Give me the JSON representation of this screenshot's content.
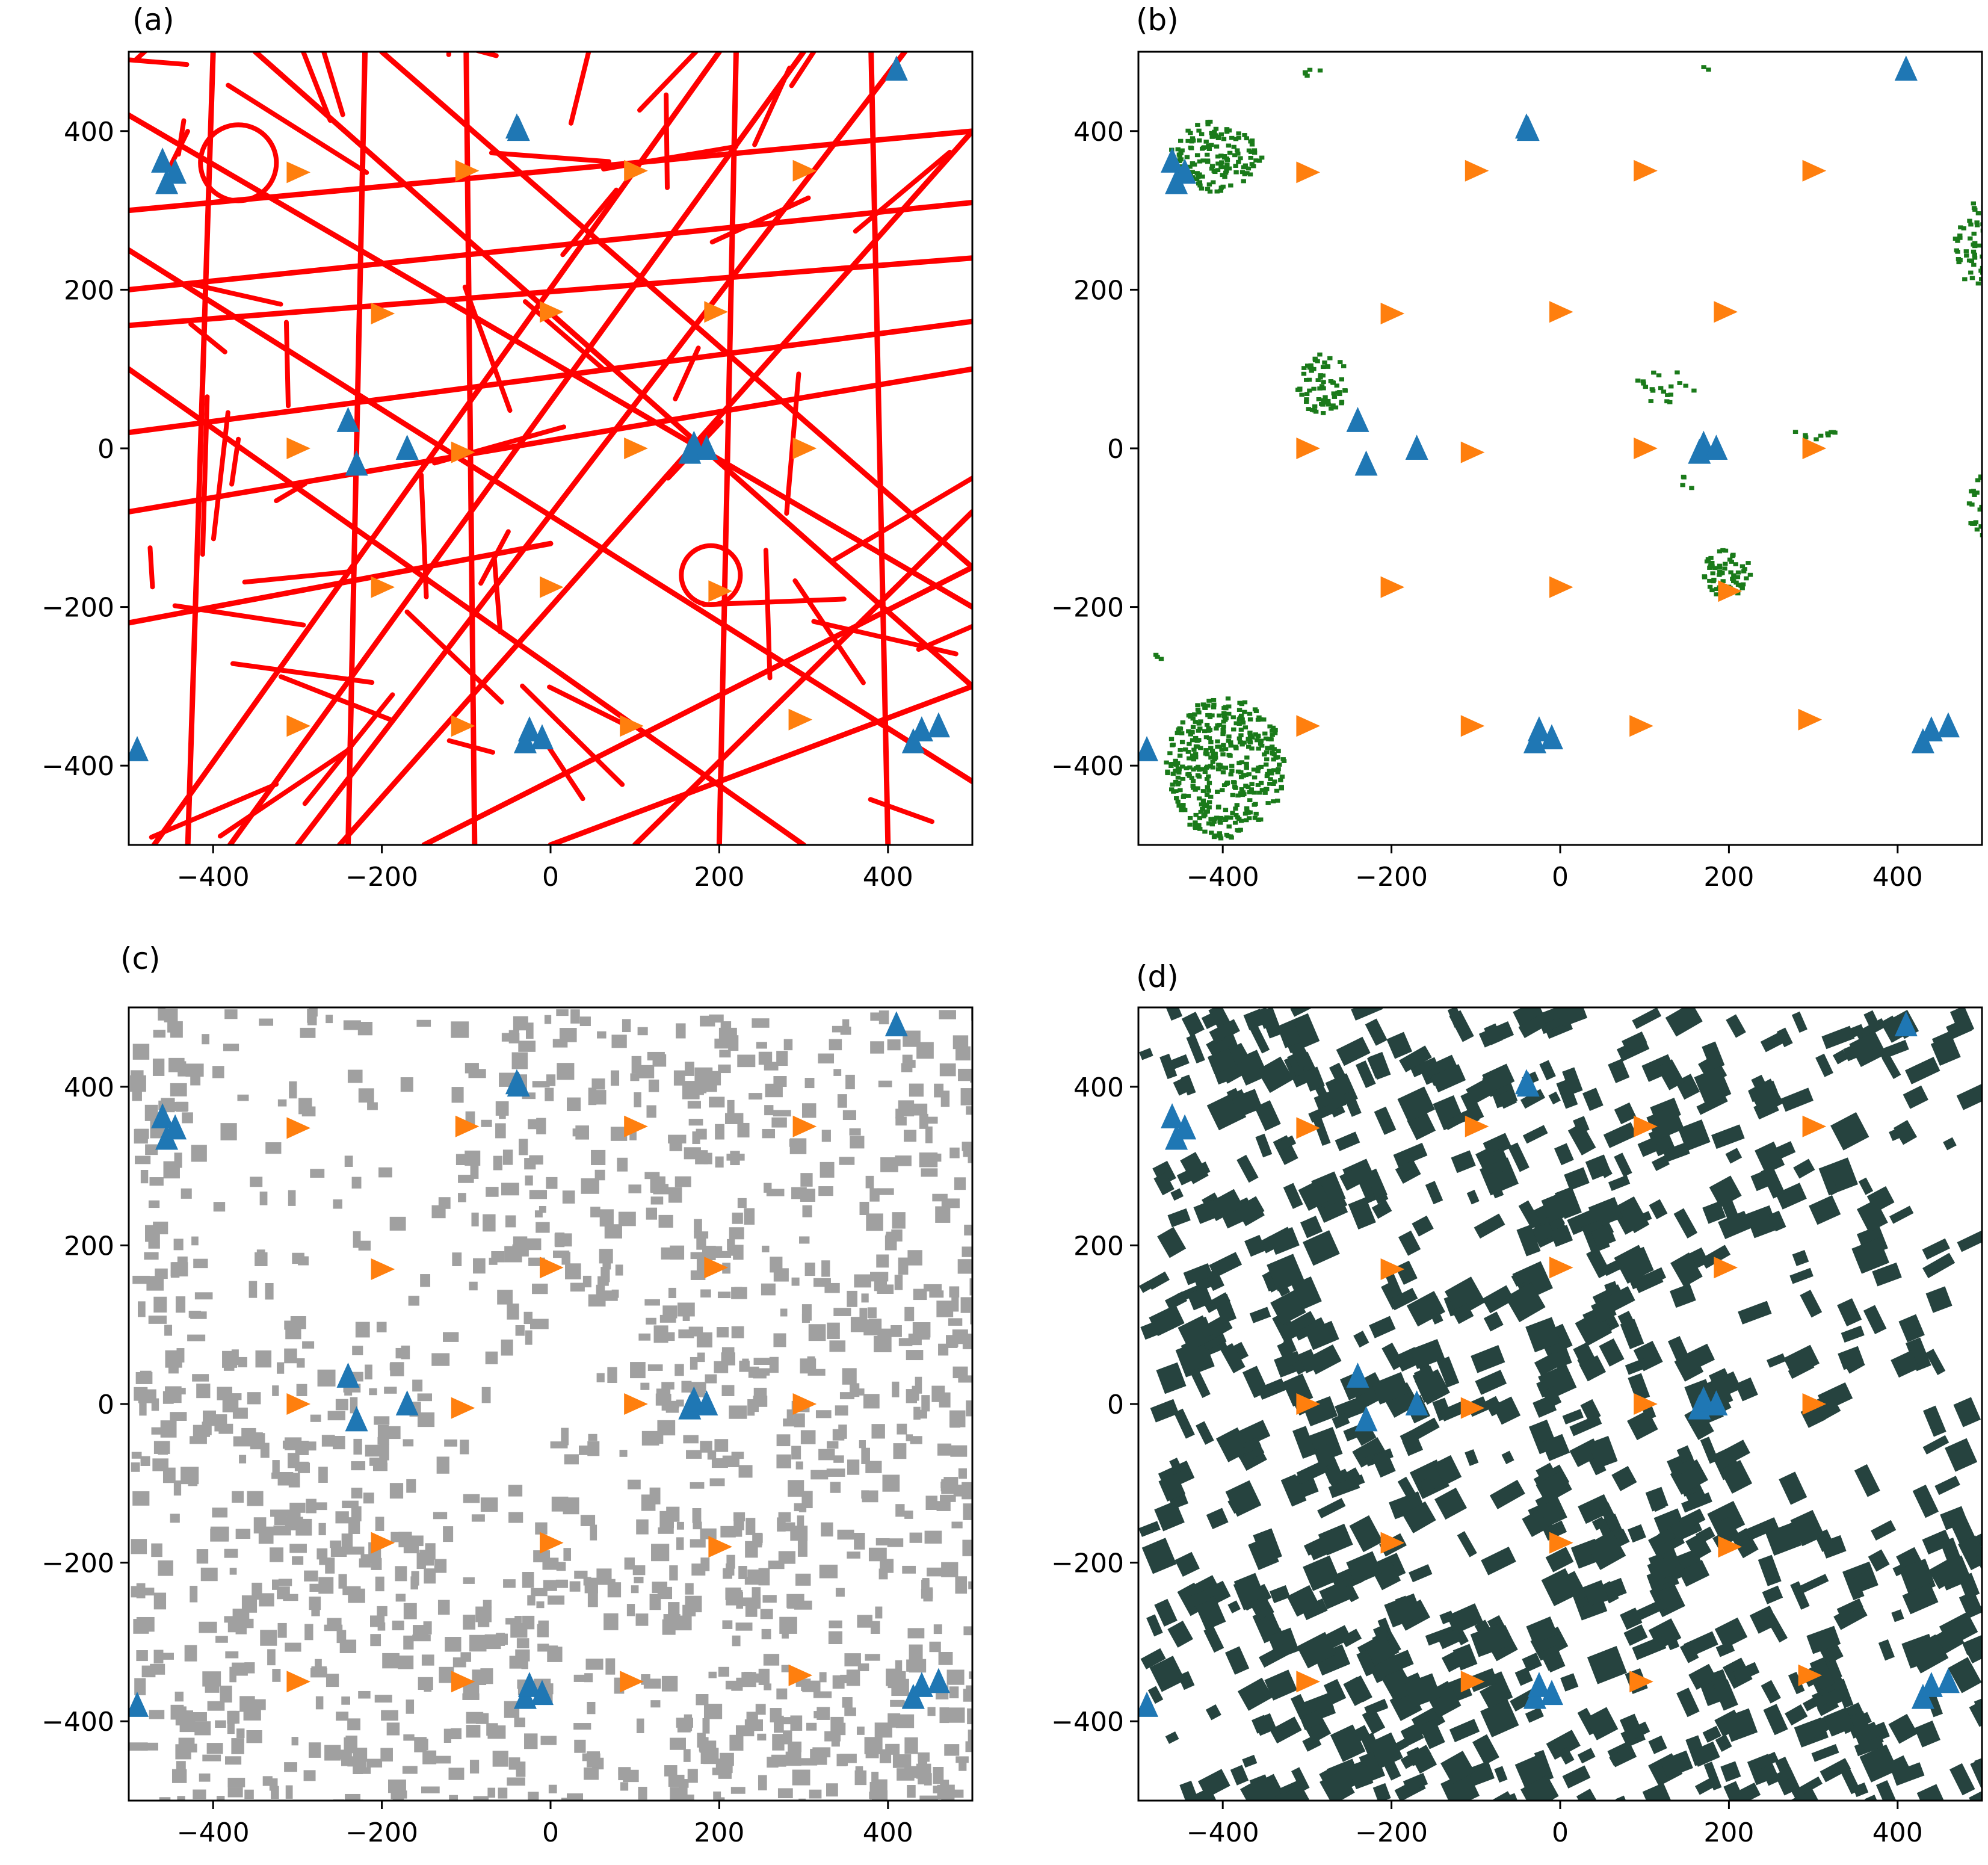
{
  "colors": {
    "axes_frame": "#000000",
    "triangle_up": "#1f77b4",
    "triangle_right": "#ff7f0e"
  },
  "chart_data": [
    {
      "type": "scatter",
      "panel_label": "(a)",
      "background_layer": "road-network",
      "layer_color": "#ff0000",
      "xlim": [
        -500,
        500
      ],
      "ylim": [
        -500,
        500
      ],
      "xticks": [
        -400,
        -200,
        0,
        200,
        400
      ],
      "yticks": [
        -400,
        -200,
        0,
        200,
        400
      ],
      "xtick_labels": [
        "−400",
        "−200",
        "0",
        "200",
        "400"
      ],
      "ytick_labels": [
        "−400",
        "−200",
        "0",
        "200",
        "400"
      ],
      "grid": false
    },
    {
      "type": "scatter",
      "panel_label": "(b)",
      "background_layer": "vegetation",
      "layer_color": "#1a7a1a",
      "xlim": [
        -500,
        500
      ],
      "ylim": [
        -500,
        500
      ],
      "xticks": [
        -400,
        -200,
        0,
        200,
        400
      ],
      "yticks": [
        -400,
        -200,
        0,
        200,
        400
      ],
      "xtick_labels": [
        "−400",
        "−200",
        "0",
        "200",
        "400"
      ],
      "ytick_labels": [
        "−400",
        "−200",
        "0",
        "200",
        "400"
      ],
      "grid": false
    },
    {
      "type": "scatter",
      "panel_label": "(c)",
      "background_layer": "buildings",
      "layer_color": "#a0a0a0",
      "xlim": [
        -500,
        500
      ],
      "ylim": [
        -500,
        500
      ],
      "xticks": [
        -400,
        -200,
        0,
        200,
        400
      ],
      "yticks": [
        -400,
        -200,
        0,
        200,
        400
      ],
      "xtick_labels": [
        "−400",
        "−200",
        "0",
        "200",
        "400"
      ],
      "ytick_labels": [
        "−400",
        "−200",
        "0",
        "200",
        "400"
      ],
      "grid": false
    },
    {
      "type": "scatter",
      "panel_label": "(d)",
      "background_layer": "building-footprints",
      "layer_color": "#26433f",
      "xlim": [
        -500,
        500
      ],
      "ylim": [
        -500,
        500
      ],
      "xticks": [
        -400,
        -200,
        0,
        200,
        400
      ],
      "yticks": [
        -400,
        -200,
        0,
        200,
        400
      ],
      "xtick_labels": [
        "−400",
        "−200",
        "0",
        "200",
        "400"
      ],
      "ytick_labels": [
        "−400",
        "−200",
        "0",
        "200",
        "400"
      ],
      "grid": false
    }
  ],
  "shared_markers": {
    "triangle_up": {
      "marker": "triangle-up",
      "color": "#1f77b4",
      "points": [
        [
          -460,
          362
        ],
        [
          -455,
          335
        ],
        [
          -445,
          348
        ],
        [
          -40,
          405
        ],
        [
          -38,
          402
        ],
        [
          410,
          478
        ],
        [
          -240,
          35
        ],
        [
          -230,
          -20
        ],
        [
          -170,
          0
        ],
        [
          165,
          -5
        ],
        [
          170,
          5
        ],
        [
          185,
          0
        ],
        [
          -490,
          -380
        ],
        [
          -30,
          -370
        ],
        [
          -25,
          -355
        ],
        [
          -10,
          -365
        ],
        [
          430,
          -370
        ],
        [
          440,
          -355
        ],
        [
          460,
          -350
        ]
      ]
    },
    "triangle_right": {
      "marker": "triangle-right",
      "color": "#ff7f0e",
      "points": [
        [
          -300,
          348
        ],
        [
          -100,
          350
        ],
        [
          100,
          350
        ],
        [
          300,
          350
        ],
        [
          -200,
          170
        ],
        [
          0,
          172
        ],
        [
          195,
          172
        ],
        [
          -300,
          0
        ],
        [
          -105,
          -5
        ],
        [
          100,
          0
        ],
        [
          300,
          0
        ],
        [
          -200,
          -175
        ],
        [
          0,
          -175
        ],
        [
          200,
          -180
        ],
        [
          -300,
          -350
        ],
        [
          -105,
          -350
        ],
        [
          95,
          -350
        ],
        [
          295,
          -342
        ]
      ]
    }
  },
  "layer_features": {
    "roads": [
      [
        [
          -500,
          300
        ],
        [
          500,
          400
        ]
      ],
      [
        [
          -500,
          200
        ],
        [
          500,
          310
        ]
      ],
      [
        [
          -500,
          155
        ],
        [
          500,
          240
        ]
      ],
      [
        [
          -500,
          20
        ],
        [
          500,
          160
        ]
      ],
      [
        [
          -500,
          -80
        ],
        [
          500,
          100
        ]
      ],
      [
        [
          -470,
          -500
        ],
        [
          200,
          500
        ]
      ],
      [
        [
          -380,
          -500
        ],
        [
          300,
          500
        ]
      ],
      [
        [
          -300,
          -500
        ],
        [
          420,
          500
        ]
      ],
      [
        [
          -250,
          -500
        ],
        [
          500,
          400
        ]
      ],
      [
        [
          -500,
          420
        ],
        [
          500,
          -200
        ]
      ],
      [
        [
          -500,
          250
        ],
        [
          500,
          -420
        ]
      ],
      [
        [
          -500,
          100
        ],
        [
          300,
          -500
        ]
      ],
      [
        [
          -350,
          500
        ],
        [
          500,
          -300
        ]
      ],
      [
        [
          -200,
          500
        ],
        [
          500,
          -150
        ]
      ],
      [
        [
          -430,
          -500
        ],
        [
          -400,
          500
        ]
      ],
      [
        [
          -240,
          -500
        ],
        [
          -220,
          500
        ]
      ],
      [
        [
          -90,
          -500
        ],
        [
          -100,
          500
        ]
      ],
      [
        [
          200,
          -500
        ],
        [
          220,
          500
        ]
      ],
      [
        [
          400,
          -500
        ],
        [
          380,
          500
        ]
      ],
      [
        [
          -150,
          -500
        ],
        [
          500,
          -150
        ]
      ],
      [
        [
          0,
          -500
        ],
        [
          500,
          -300
        ]
      ],
      [
        [
          -500,
          -220
        ],
        [
          0,
          -120
        ]
      ],
      [
        [
          100,
          -500
        ],
        [
          500,
          -80
        ]
      ]
    ],
    "vegetation_clusters": [
      [
        -410,
        370,
        55,
        45,
        140
      ],
      [
        -285,
        85,
        30,
        40,
        70
      ],
      [
        195,
        -155,
        28,
        30,
        60
      ],
      [
        -400,
        -400,
        70,
        90,
        420
      ],
      [
        490,
        260,
        25,
        55,
        60
      ],
      [
        495,
        -70,
        15,
        40,
        30
      ],
      [
        120,
        80,
        40,
        20,
        20
      ],
      [
        300,
        20,
        30,
        10,
        10
      ],
      [
        -480,
        -260,
        5,
        5,
        3
      ],
      [
        150,
        -40,
        10,
        10,
        4
      ],
      [
        170,
        480,
        5,
        5,
        2
      ],
      [
        -300,
        480,
        20,
        10,
        5
      ]
    ],
    "gray_blocks": 1500,
    "dark_blocks": 900
  }
}
